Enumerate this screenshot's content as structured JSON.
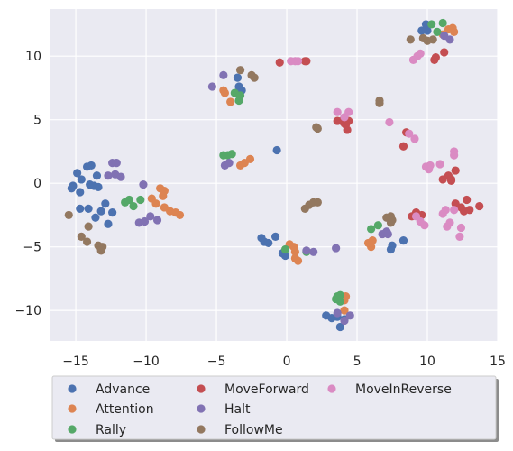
{
  "chart_data": {
    "type": "scatter",
    "title": "",
    "xlabel": "",
    "ylabel": "",
    "xlim": [
      -16.8,
      15
    ],
    "ylim": [
      -12.4,
      13.7
    ],
    "xticks": [
      -15,
      -10,
      -5,
      0,
      5,
      10,
      15
    ],
    "xtick_labels": [
      "−15",
      "−10",
      "−5",
      "0",
      "5",
      "10",
      "15"
    ],
    "yticks": [
      -10,
      -5,
      0,
      5,
      10
    ],
    "ytick_labels": [
      "−10",
      "−5",
      "0",
      "5",
      "10"
    ],
    "grid": true,
    "background": "#eaeaf2",
    "legend_placement": "below",
    "series": [
      {
        "name": "Advance",
        "color": "#4c72b0",
        "points": [
          [
            -15.3,
            -0.4
          ],
          [
            -15.2,
            -0.2
          ],
          [
            -14.9,
            0.8
          ],
          [
            -14.6,
            0.3
          ],
          [
            -14.7,
            -0.7
          ],
          [
            -14.2,
            1.3
          ],
          [
            -13.9,
            1.4
          ],
          [
            -14.0,
            -0.1
          ],
          [
            -13.7,
            -0.2
          ],
          [
            -13.5,
            0.6
          ],
          [
            -13.4,
            -0.3
          ],
          [
            -14.7,
            -2.0
          ],
          [
            -14.1,
            -2.0
          ],
          [
            -13.6,
            -2.7
          ],
          [
            -13.2,
            -2.2
          ],
          [
            -12.9,
            -1.6
          ],
          [
            -12.7,
            -3.2
          ],
          [
            -12.4,
            -2.3
          ],
          [
            -3.5,
            8.3
          ],
          [
            -3.4,
            7.6
          ],
          [
            -3.2,
            7.3
          ],
          [
            -1.8,
            -4.3
          ],
          [
            -1.6,
            -4.6
          ],
          [
            -1.3,
            -4.7
          ],
          [
            -0.8,
            -4.2
          ],
          [
            -0.3,
            -5.5
          ],
          [
            -0.1,
            -5.7
          ],
          [
            -0.7,
            2.6
          ],
          [
            2.8,
            -10.4
          ],
          [
            3.2,
            -10.6
          ],
          [
            3.6,
            -10.5
          ],
          [
            3.8,
            -11.3
          ],
          [
            4.1,
            -10.7
          ],
          [
            7.4,
            -5.2
          ],
          [
            7.5,
            -4.9
          ],
          [
            8.3,
            -4.5
          ],
          [
            9.6,
            12.0
          ],
          [
            9.9,
            12.5
          ],
          [
            10.0,
            12.0
          ]
        ]
      },
      {
        "name": "Attention",
        "color": "#dd8452",
        "points": [
          [
            -9.6,
            -1.2
          ],
          [
            -9.3,
            -1.6
          ],
          [
            -9.0,
            -0.4
          ],
          [
            -8.7,
            -0.6
          ],
          [
            -8.8,
            -1.0
          ],
          [
            -8.7,
            -1.9
          ],
          [
            -8.3,
            -2.2
          ],
          [
            -7.9,
            -2.3
          ],
          [
            -7.6,
            -2.5
          ],
          [
            -4.5,
            7.3
          ],
          [
            -4.4,
            7.1
          ],
          [
            -4.0,
            6.4
          ],
          [
            -3.3,
            1.4
          ],
          [
            -3.0,
            1.6
          ],
          [
            -2.6,
            1.9
          ],
          [
            0.2,
            -4.8
          ],
          [
            0.5,
            -5.0
          ],
          [
            0.6,
            -5.4
          ],
          [
            0.6,
            -5.9
          ],
          [
            0.8,
            -6.1
          ],
          [
            4.1,
            -9.2
          ],
          [
            4.2,
            -8.9
          ],
          [
            4.1,
            -10.0
          ],
          [
            5.8,
            -4.7
          ],
          [
            6.0,
            -5.0
          ],
          [
            6.1,
            -4.5
          ],
          [
            11.5,
            12.1
          ],
          [
            11.8,
            12.2
          ],
          [
            11.9,
            11.9
          ],
          [
            11.1,
            11.7
          ]
        ]
      },
      {
        "name": "Rally",
        "color": "#55a868",
        "points": [
          [
            -11.5,
            -1.5
          ],
          [
            -11.2,
            -1.3
          ],
          [
            -10.9,
            -1.8
          ],
          [
            -10.4,
            -1.3
          ],
          [
            -4.5,
            2.2
          ],
          [
            -4.2,
            2.2
          ],
          [
            -3.9,
            2.3
          ],
          [
            -3.7,
            7.1
          ],
          [
            -3.3,
            6.9
          ],
          [
            -3.4,
            6.5
          ],
          [
            -0.1,
            -5.2
          ],
          [
            1.4,
            -5.4
          ],
          [
            3.5,
            -9.1
          ],
          [
            3.6,
            -8.9
          ],
          [
            3.8,
            -8.8
          ],
          [
            3.8,
            -9.3
          ],
          [
            6.0,
            -3.6
          ],
          [
            6.5,
            -3.3
          ],
          [
            10.3,
            12.5
          ],
          [
            10.7,
            11.9
          ],
          [
            11.1,
            12.6
          ]
        ]
      },
      {
        "name": "MoveForward",
        "color": "#c44e52",
        "points": [
          [
            -0.5,
            9.5
          ],
          [
            1.3,
            9.6
          ],
          [
            1.4,
            9.6
          ],
          [
            3.6,
            4.9
          ],
          [
            3.9,
            4.9
          ],
          [
            4.1,
            4.7
          ],
          [
            4.3,
            4.2
          ],
          [
            4.2,
            4.6
          ],
          [
            4.4,
            4.9
          ],
          [
            8.3,
            2.9
          ],
          [
            8.5,
            4.0
          ],
          [
            8.9,
            -2.6
          ],
          [
            9.2,
            -2.3
          ],
          [
            9.6,
            -2.5
          ],
          [
            10.5,
            9.7
          ],
          [
            10.6,
            9.9
          ],
          [
            11.2,
            10.3
          ],
          [
            11.1,
            0.3
          ],
          [
            11.5,
            0.6
          ],
          [
            11.7,
            0.3
          ],
          [
            12.0,
            1.0
          ],
          [
            11.7,
            0.2
          ],
          [
            12.0,
            -1.6
          ],
          [
            12.4,
            -1.9
          ],
          [
            12.6,
            -2.2
          ],
          [
            12.8,
            -1.3
          ],
          [
            13.0,
            -2.1
          ],
          [
            13.7,
            -1.8
          ]
        ]
      },
      {
        "name": "Halt",
        "color": "#8172b3",
        "points": [
          [
            -12.4,
            1.6
          ],
          [
            -12.1,
            1.6
          ],
          [
            -12.7,
            0.6
          ],
          [
            -12.2,
            0.7
          ],
          [
            -11.8,
            0.5
          ],
          [
            -10.2,
            -0.1
          ],
          [
            -10.5,
            -3.1
          ],
          [
            -10.1,
            -3.0
          ],
          [
            -9.7,
            -2.6
          ],
          [
            -9.2,
            -2.9
          ],
          [
            -5.3,
            7.6
          ],
          [
            -4.5,
            8.5
          ],
          [
            -4.4,
            1.4
          ],
          [
            -4.1,
            1.6
          ],
          [
            1.4,
            -5.3
          ],
          [
            1.9,
            -5.4
          ],
          [
            3.5,
            -5.1
          ],
          [
            3.6,
            -10.2
          ],
          [
            4.1,
            -10.8
          ],
          [
            4.5,
            -10.4
          ],
          [
            6.8,
            -4.0
          ],
          [
            7.1,
            -3.8
          ],
          [
            7.2,
            -4.0
          ],
          [
            11.2,
            11.6
          ],
          [
            11.6,
            11.3
          ]
        ]
      },
      {
        "name": "FollowMe",
        "color": "#937860",
        "points": [
          [
            -15.5,
            -2.5
          ],
          [
            -14.6,
            -4.2
          ],
          [
            -14.2,
            -4.6
          ],
          [
            -14.1,
            -3.4
          ],
          [
            -13.4,
            -4.9
          ],
          [
            -13.2,
            -5.3
          ],
          [
            -13.1,
            -5.0
          ],
          [
            -3.3,
            8.9
          ],
          [
            -2.5,
            8.5
          ],
          [
            -2.3,
            8.3
          ],
          [
            1.3,
            -2.0
          ],
          [
            1.6,
            -1.7
          ],
          [
            1.9,
            -1.5
          ],
          [
            2.2,
            -1.5
          ],
          [
            2.1,
            4.4
          ],
          [
            2.2,
            4.3
          ],
          [
            6.6,
            6.5
          ],
          [
            6.6,
            6.3
          ],
          [
            7.1,
            -2.7
          ],
          [
            7.4,
            -2.6
          ],
          [
            7.5,
            -2.9
          ],
          [
            7.4,
            -3.1
          ],
          [
            8.8,
            11.3
          ],
          [
            9.7,
            11.4
          ],
          [
            10.0,
            11.2
          ],
          [
            10.4,
            11.3
          ]
        ]
      },
      {
        "name": "MoveInReverse",
        "color": "#da8bc3",
        "points": [
          [
            0.3,
            9.6
          ],
          [
            0.6,
            9.6
          ],
          [
            0.8,
            9.6
          ],
          [
            3.6,
            5.6
          ],
          [
            4.1,
            5.2
          ],
          [
            4.4,
            5.6
          ],
          [
            7.3,
            4.8
          ],
          [
            8.7,
            3.9
          ],
          [
            9.1,
            3.5
          ],
          [
            9.0,
            9.7
          ],
          [
            9.3,
            10.0
          ],
          [
            9.5,
            10.2
          ],
          [
            9.9,
            1.3
          ],
          [
            10.2,
            1.4
          ],
          [
            10.1,
            1.1
          ],
          [
            10.9,
            1.5
          ],
          [
            9.2,
            -2.6
          ],
          [
            9.5,
            -3.0
          ],
          [
            9.8,
            -3.3
          ],
          [
            11.1,
            -2.4
          ],
          [
            11.3,
            -2.1
          ],
          [
            11.4,
            -3.4
          ],
          [
            11.6,
            -3.1
          ],
          [
            11.9,
            -2.1
          ],
          [
            11.9,
            2.5
          ],
          [
            11.9,
            2.2
          ],
          [
            12.3,
            -4.2
          ],
          [
            12.4,
            -3.5
          ]
        ]
      }
    ]
  }
}
